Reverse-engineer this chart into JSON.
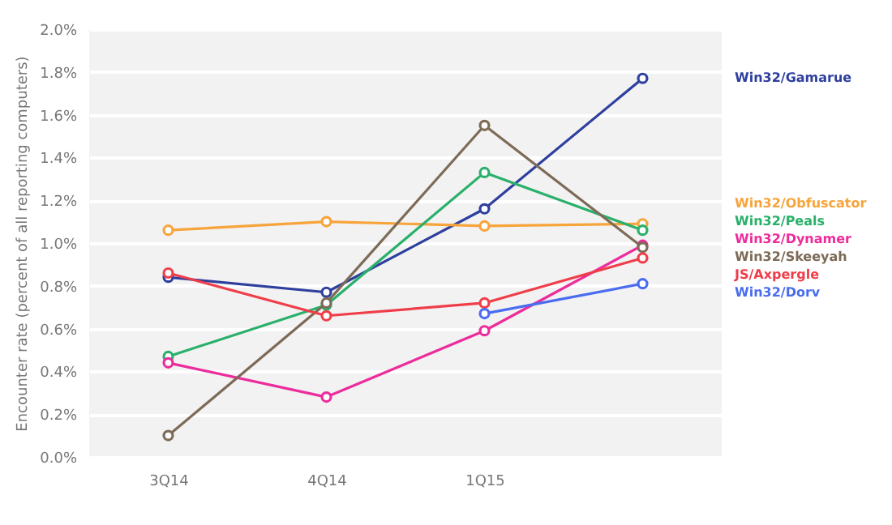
{
  "chart_data": {
    "type": "line",
    "ylabel": "Encounter rate (percent of all reporting computers)",
    "categories": [
      "3Q14",
      "4Q14",
      "1Q15",
      null
    ],
    "ylim": [
      0,
      2
    ],
    "yticks": [
      {
        "value": 0,
        "label": "0.0%"
      },
      {
        "value": 0.2,
        "label": "0.2%"
      },
      {
        "value": 0.4,
        "label": "0.4%"
      },
      {
        "value": 0.6,
        "label": "0.6%"
      },
      {
        "value": 0.8,
        "label": "0.8%"
      },
      {
        "value": 1,
        "label": "1.0%"
      },
      {
        "value": 1.2,
        "label": "1.2%"
      },
      {
        "value": 1.4,
        "label": "1.4%"
      },
      {
        "value": 1.6,
        "label": "1.6%"
      },
      {
        "value": 1.8,
        "label": "1.8%"
      },
      {
        "value": 2,
        "label": "2.0%"
      }
    ],
    "grid": "y",
    "marker": "circle",
    "legend": "right",
    "series": [
      {
        "name": "Win32/Gamarue",
        "color": "#2e3f9e",
        "values": [
          0.84,
          0.77,
          1.16,
          1.77
        ]
      },
      {
        "name": "Win32/Obfuscator",
        "color": "#f7a43a",
        "values": [
          1.06,
          1.1,
          1.08,
          1.09
        ]
      },
      {
        "name": "Win32/Peals",
        "color": "#2ab06a",
        "values": [
          0.47,
          0.71,
          1.33,
          1.06
        ]
      },
      {
        "name": "Win32/Dynamer",
        "color": "#ec2c9c",
        "values": [
          0.44,
          0.28,
          0.59,
          0.99
        ]
      },
      {
        "name": "Win32/Skeeyah",
        "color": "#7d6b57",
        "values": [
          0.1,
          0.72,
          1.55,
          0.98
        ]
      },
      {
        "name": "JS/Axpergle",
        "color": "#ef3e4a",
        "values": [
          0.86,
          0.66,
          0.72,
          0.93
        ]
      },
      {
        "name": "Win32/Dorv",
        "color": "#4a6cf0",
        "values": [
          null,
          null,
          0.67,
          0.81
        ]
      }
    ]
  }
}
